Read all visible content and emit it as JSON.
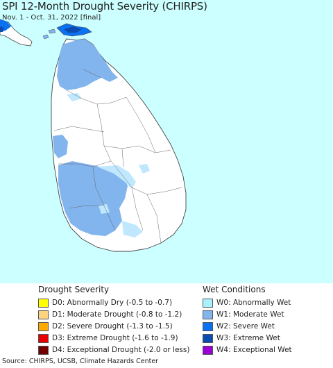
{
  "header": {
    "title": "SPI 12-Month Drought Severity (CHIRPS)",
    "subtitle": "Nov. 1 - Oct. 31, 2022 [final]"
  },
  "colors": {
    "ocean": "#ccffff",
    "land": "#ffffff",
    "w0": "#bfe8ff",
    "w1": "#82b4ee",
    "w2": "#0a72f0",
    "w3": "#0b4cb0",
    "w4": "#9a00d6",
    "border": "#444444"
  },
  "legend": {
    "drought": {
      "heading": "Drought Severity",
      "items": [
        {
          "label": "D0: Abnormally Dry (-0.5 to -0.7)",
          "color": "#ffff00"
        },
        {
          "label": "D1: Moderate Drought (-0.8 to -1.2)",
          "color": "#fcd37f"
        },
        {
          "label": "D2: Severe Drought (-1.3 to -1.5)",
          "color": "#ffaa00"
        },
        {
          "label": "D3: Extreme Drought (-1.6 to -1.9)",
          "color": "#e60000"
        },
        {
          "label": "D4: Exceptional Drought (-2.0 or less)",
          "color": "#730000"
        }
      ]
    },
    "wet": {
      "heading": "Wet Conditions",
      "items": [
        {
          "label": "W0: Abnormally Wet",
          "color": "#aaf0ff"
        },
        {
          "label": "W1: Moderate Wet",
          "color": "#82b4ee"
        },
        {
          "label": "W2: Severe Wet",
          "color": "#0a72f0"
        },
        {
          "label": "W3: Extreme Wet",
          "color": "#0b4cb0"
        },
        {
          "label": "W4: Exceptional Wet",
          "color": "#9a00d6"
        }
      ]
    }
  },
  "footer": {
    "source": "Source: CHIRPS, UCSB, Climate Hazards Center"
  }
}
